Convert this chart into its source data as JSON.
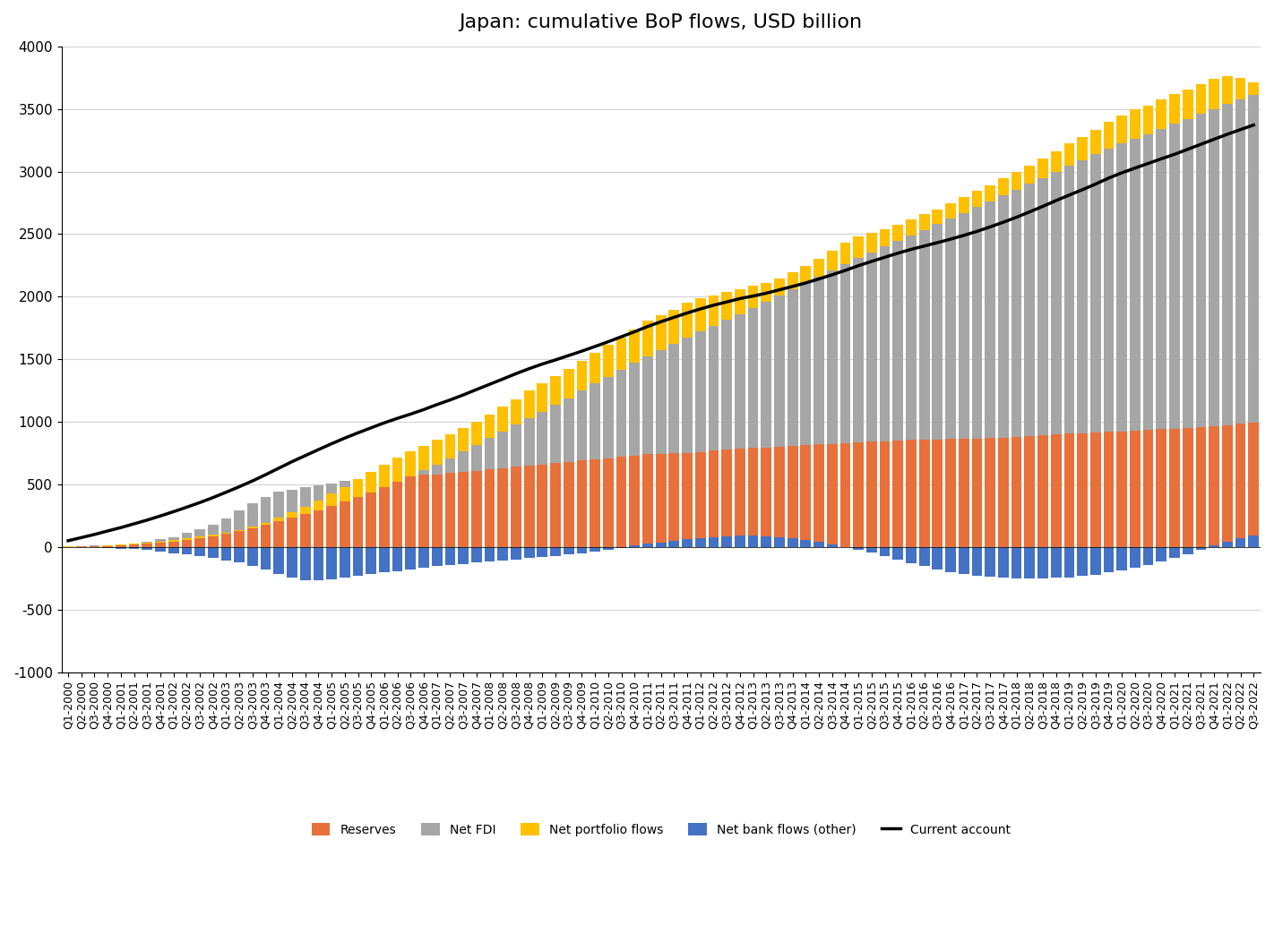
{
  "title": "Japan: cumulative BoP flows, USD billion",
  "ylim": [
    -1000,
    4000
  ],
  "yticks": [
    -1000,
    -500,
    0,
    500,
    1000,
    1500,
    2000,
    2500,
    3000,
    3500,
    4000
  ],
  "colors": {
    "reserves": "#E8703A",
    "fdi": "#A6A6A6",
    "portfolio": "#FFC000",
    "bank": "#4472C4",
    "current_account": "#000000"
  },
  "quarters": [
    "Q1-2000",
    "Q2-2000",
    "Q3-2000",
    "Q4-2000",
    "Q1-2001",
    "Q2-2001",
    "Q3-2001",
    "Q4-2001",
    "Q1-2002",
    "Q2-2002",
    "Q3-2002",
    "Q4-2002",
    "Q1-2003",
    "Q2-2003",
    "Q3-2003",
    "Q4-2003",
    "Q1-2004",
    "Q2-2004",
    "Q3-2004",
    "Q4-2004",
    "Q1-2005",
    "Q2-2005",
    "Q3-2005",
    "Q4-2005",
    "Q1-2006",
    "Q2-2006",
    "Q3-2006",
    "Q4-2006",
    "Q1-2007",
    "Q2-2007",
    "Q3-2007",
    "Q4-2007",
    "Q1-2008",
    "Q2-2008",
    "Q3-2008",
    "Q4-2008",
    "Q1-2009",
    "Q2-2009",
    "Q3-2009",
    "Q4-2009",
    "Q1-2010",
    "Q2-2010",
    "Q3-2010",
    "Q4-2010",
    "Q1-2011",
    "Q2-2011",
    "Q3-2011",
    "Q4-2011",
    "Q1-2012",
    "Q2-2012",
    "Q3-2012",
    "Q4-2012",
    "Q1-2013",
    "Q2-2013",
    "Q3-2013",
    "Q4-2013",
    "Q1-2014",
    "Q2-2014",
    "Q3-2014",
    "Q4-2014",
    "Q1-2015",
    "Q2-2015",
    "Q3-2015",
    "Q4-2015",
    "Q1-2016",
    "Q2-2016",
    "Q3-2016",
    "Q4-2016",
    "Q1-2017",
    "Q2-2017",
    "Q3-2017",
    "Q4-2017",
    "Q1-2018",
    "Q2-2018",
    "Q3-2018",
    "Q4-2018",
    "Q1-2019",
    "Q2-2019",
    "Q3-2019",
    "Q4-2019",
    "Q1-2020",
    "Q2-2020",
    "Q3-2020",
    "Q4-2020",
    "Q1-2021",
    "Q2-2021",
    "Q3-2021",
    "Q4-2021",
    "Q1-2022",
    "Q2-2022",
    "Q3-2022"
  ],
  "reserves": [
    5,
    8,
    10,
    15,
    20,
    30,
    45,
    60,
    80,
    110,
    145,
    180,
    230,
    290,
    350,
    400,
    440,
    460,
    475,
    490,
    510,
    530,
    545,
    555,
    565,
    570,
    572,
    575,
    580,
    590,
    600,
    610,
    620,
    630,
    640,
    650,
    660,
    670,
    680,
    690,
    700,
    710,
    720,
    730,
    740,
    745,
    748,
    752,
    760,
    770,
    778,
    785,
    790,
    795,
    800,
    808,
    815,
    820,
    825,
    830,
    835,
    840,
    845,
    850,
    855,
    858,
    860,
    862,
    865,
    868,
    870,
    875,
    880,
    885,
    890,
    900,
    905,
    910,
    915,
    920,
    925,
    930,
    935,
    940,
    945,
    950,
    955,
    965,
    975,
    985,
    990
  ],
  "fdi": [
    2,
    4,
    6,
    8,
    12,
    18,
    25,
    35,
    45,
    58,
    72,
    88,
    105,
    125,
    148,
    175,
    205,
    235,
    265,
    295,
    330,
    365,
    400,
    438,
    478,
    520,
    565,
    612,
    660,
    710,
    762,
    815,
    870,
    925,
    980,
    1030,
    1080,
    1135,
    1190,
    1248,
    1305,
    1360,
    1415,
    1470,
    1525,
    1575,
    1625,
    1675,
    1720,
    1768,
    1815,
    1862,
    1910,
    1958,
    2008,
    2058,
    2108,
    2158,
    2210,
    2262,
    2310,
    2355,
    2400,
    2445,
    2490,
    2535,
    2580,
    2625,
    2670,
    2715,
    2762,
    2808,
    2855,
    2902,
    2950,
    2998,
    3045,
    3092,
    3138,
    3185,
    3225,
    3260,
    3300,
    3340,
    3380,
    3420,
    3460,
    3500,
    3540,
    3580,
    3610
  ],
  "portfolio": [
    3,
    5,
    8,
    12,
    18,
    25,
    35,
    45,
    55,
    68,
    82,
    98,
    115,
    138,
    162,
    195,
    235,
    275,
    320,
    370,
    425,
    480,
    540,
    600,
    660,
    715,
    762,
    808,
    855,
    900,
    948,
    1000,
    1060,
    1120,
    1180,
    1250,
    1310,
    1368,
    1420,
    1485,
    1555,
    1618,
    1675,
    1740,
    1810,
    1855,
    1895,
    1950,
    1985,
    2010,
    2038,
    2060,
    2085,
    2110,
    2148,
    2195,
    2248,
    2305,
    2368,
    2435,
    2480,
    2508,
    2540,
    2578,
    2618,
    2660,
    2700,
    2748,
    2795,
    2845,
    2892,
    2945,
    2998,
    3050,
    3105,
    3165,
    3225,
    3278,
    3335,
    3398,
    3450,
    3495,
    3530,
    3580,
    3620,
    3658,
    3695,
    3740,
    3762,
    3745,
    3710
  ],
  "bank": [
    0,
    -2,
    -4,
    -8,
    -12,
    -18,
    -25,
    -35,
    -48,
    -62,
    -75,
    -88,
    -105,
    -125,
    -148,
    -178,
    -215,
    -248,
    -265,
    -268,
    -258,
    -248,
    -232,
    -218,
    -205,
    -192,
    -180,
    -168,
    -155,
    -145,
    -135,
    -125,
    -118,
    -108,
    -100,
    -90,
    -82,
    -72,
    -60,
    -48,
    -35,
    -20,
    -5,
    10,
    25,
    38,
    50,
    60,
    70,
    78,
    85,
    90,
    90,
    85,
    78,
    70,
    58,
    42,
    22,
    0,
    -22,
    -45,
    -72,
    -100,
    -128,
    -155,
    -178,
    -198,
    -215,
    -228,
    -238,
    -245,
    -250,
    -252,
    -250,
    -248,
    -242,
    -232,
    -220,
    -205,
    -188,
    -168,
    -142,
    -115,
    -88,
    -58,
    -25,
    10,
    45,
    70,
    90
  ],
  "current_account": [
    50,
    75,
    100,
    128,
    155,
    185,
    215,
    248,
    282,
    318,
    355,
    395,
    438,
    482,
    528,
    578,
    630,
    682,
    730,
    778,
    825,
    870,
    912,
    952,
    992,
    1028,
    1062,
    1098,
    1138,
    1175,
    1215,
    1258,
    1300,
    1342,
    1385,
    1425,
    1462,
    1495,
    1530,
    1565,
    1602,
    1640,
    1680,
    1720,
    1762,
    1800,
    1835,
    1870,
    1902,
    1932,
    1958,
    1985,
    2005,
    2028,
    2055,
    2082,
    2110,
    2142,
    2175,
    2210,
    2248,
    2282,
    2315,
    2348,
    2378,
    2405,
    2432,
    2460,
    2490,
    2522,
    2558,
    2595,
    2635,
    2678,
    2722,
    2768,
    2812,
    2855,
    2900,
    2948,
    2990,
    3028,
    3065,
    3102,
    3138,
    3178,
    3218,
    3258,
    3298,
    3335,
    3372
  ]
}
